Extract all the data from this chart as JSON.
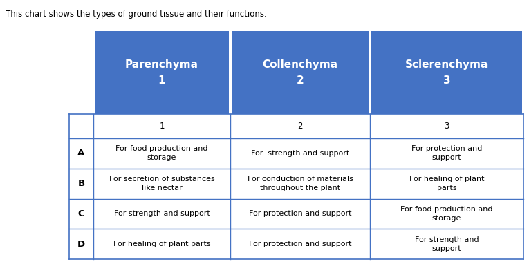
{
  "title": "This chart shows the types of ground tissue and their functions.",
  "header_labels": [
    "Parenchyma\n1",
    "Collenchyma\n2",
    "Sclerenchyma\n3"
  ],
  "header_color": "#4472C4",
  "header_text_color": "#FFFFFF",
  "col_numbers": [
    "1",
    "2",
    "3"
  ],
  "rows": [
    {
      "row_label": "A",
      "cells": [
        "For food production and\nstorage",
        "For  strength and support",
        "For protection and\nsupport"
      ]
    },
    {
      "row_label": "B",
      "cells": [
        "For secretion of substances\nlike nectar",
        "For conduction of materials\nthroughout the plant",
        "For healing of plant\nparts"
      ]
    },
    {
      "row_label": "C",
      "cells": [
        "For strength and support",
        "For protection and support",
        "For food production and\nstorage"
      ]
    },
    {
      "row_label": "D",
      "cells": [
        "For healing of plant parts",
        "For protection and support",
        "For strength and\nsupport"
      ]
    }
  ],
  "border_color": "#4472C4",
  "cell_text_color": "#000000",
  "background_color": "#FFFFFF",
  "fig_width": 7.65,
  "fig_height": 3.82,
  "dpi": 100
}
